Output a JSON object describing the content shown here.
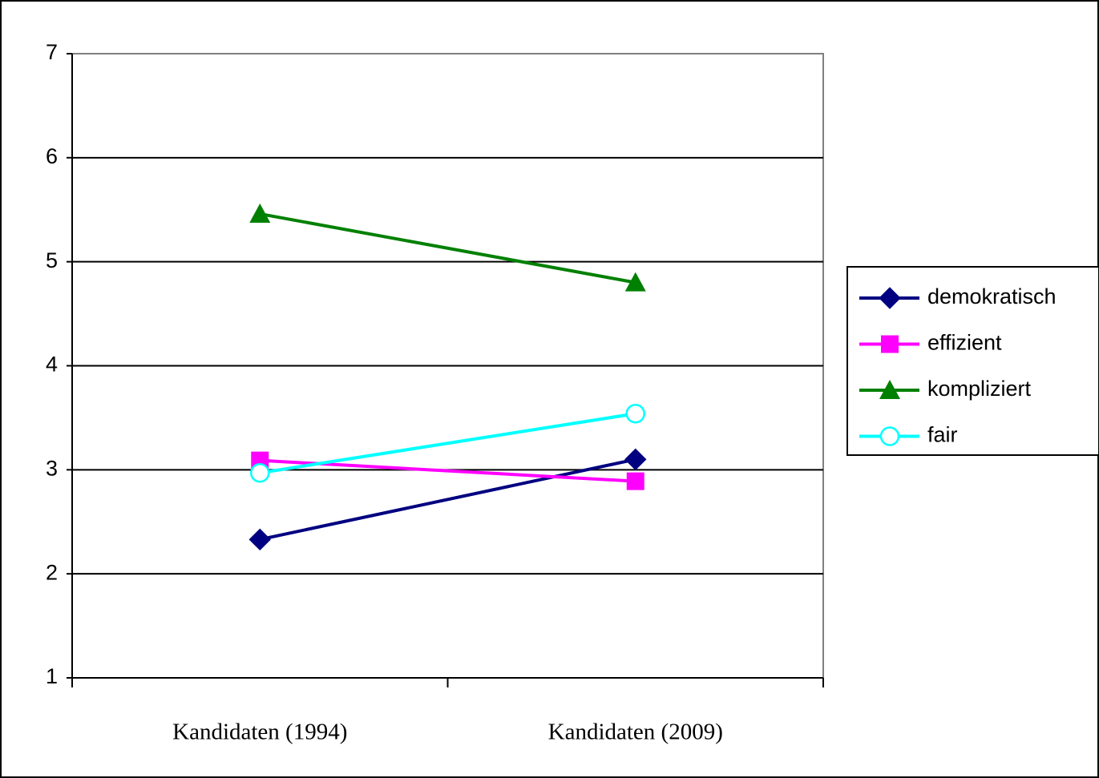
{
  "chart_data": {
    "type": "line",
    "categories": [
      "Kandidaten (1994)",
      "Kandidaten (2009)"
    ],
    "series": [
      {
        "name": "demokratisch",
        "color": "#000080",
        "marker": "diamond",
        "values": [
          2.33,
          3.1
        ]
      },
      {
        "name": "effizient",
        "color": "#ff00ff",
        "marker": "square",
        "values": [
          3.09,
          2.89
        ]
      },
      {
        "name": "kompliziert",
        "color": "#008000",
        "marker": "triangle",
        "values": [
          5.46,
          4.8
        ]
      },
      {
        "name": "fair",
        "color": "#00ffff",
        "marker": "circle",
        "values": [
          2.97,
          3.54
        ]
      }
    ],
    "ylim": [
      1,
      7
    ],
    "yticks": [
      1,
      2,
      3,
      4,
      5,
      6,
      7
    ],
    "grid": true,
    "legend": "right"
  }
}
